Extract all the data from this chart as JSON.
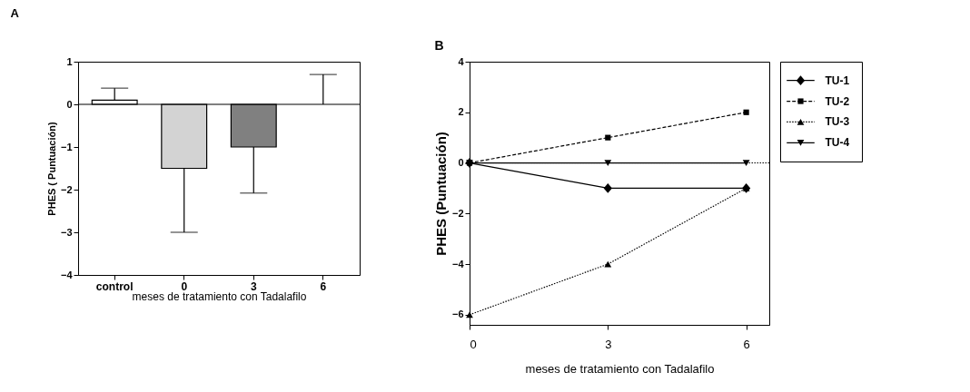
{
  "chart_data": [
    {
      "type": "bar",
      "title": "A",
      "ylabel": "PHES ( Puntuación)",
      "xlabel": "meses de tratamiento con Tadalafilo",
      "categories": [
        "control",
        "0",
        "3",
        "6"
      ],
      "values": [
        0.1,
        -1.5,
        -1,
        0
      ],
      "colors": [
        "#ffffff",
        "#d3d3d3",
        "#808080",
        "#ffffff"
      ],
      "errors": [
        [
          0.1,
          0.38
        ],
        [
          -3,
          -1.5
        ],
        [
          -2.08,
          -1
        ],
        [
          0,
          0.7
        ]
      ],
      "ylim": [
        -4,
        1
      ],
      "yticks": [
        -4,
        -3,
        -2,
        -1,
        0,
        1
      ],
      "grid": false,
      "ref_lines": [
        {
          "axis": "y",
          "value": 0,
          "color": "#000000"
        }
      ]
    },
    {
      "type": "line",
      "title": "B",
      "ylabel": "PHES (Puntuación)",
      "xlabel": "meses de tratamiento con Tadalafilo",
      "x": [
        0,
        3,
        6
      ],
      "series": [
        {
          "name": "TU-1",
          "color": "#000000",
          "marker": "diamond",
          "line_style": "solid",
          "values": [
            0,
            -1,
            -1
          ]
        },
        {
          "name": "TU-2",
          "color": "#000000",
          "marker": "square",
          "line_style": "dashed",
          "values": [
            0,
            1,
            2
          ]
        },
        {
          "name": "TU-3",
          "color": "#000000",
          "marker": "triangle",
          "line_style": "dotted",
          "values": [
            -6,
            -4,
            -1
          ]
        },
        {
          "name": "TU-4",
          "color": "#000000",
          "marker": "triangle-down",
          "line_style": "solid",
          "values": [
            0,
            0,
            0
          ]
        }
      ],
      "xlim": [
        0,
        6.5
      ],
      "xticks": [
        0,
        3,
        6
      ],
      "ylim": [
        -6.4,
        4
      ],
      "yticks": [
        -6,
        -4,
        -2,
        0,
        2,
        4
      ],
      "grid": false,
      "legend": "right",
      "ref_lines": [
        {
          "axis": "y",
          "value": 0,
          "color": "#000000",
          "line_style": "dotted"
        }
      ]
    }
  ]
}
